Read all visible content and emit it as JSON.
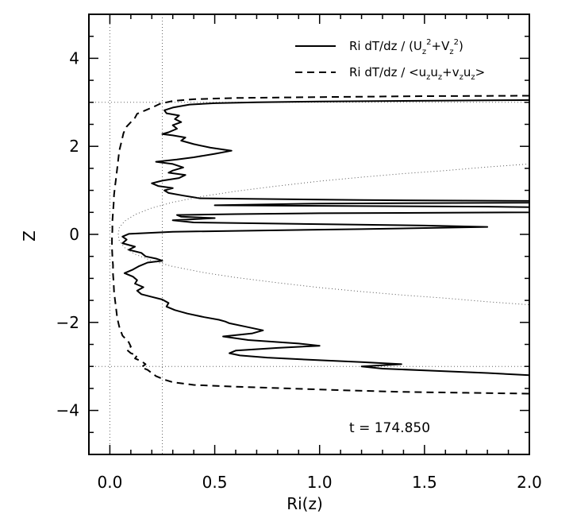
{
  "chart_data": {
    "type": "line",
    "title": "",
    "xlabel": "Ri(z)",
    "ylabel": "Z",
    "xlim": [
      -0.1,
      2.0
    ],
    "ylim": [
      -5.0,
      5.0
    ],
    "x_ticks": [
      0.0,
      0.5,
      1.0,
      1.5,
      2.0
    ],
    "x_tick_labels": [
      "0.0",
      "0.5",
      "1.0",
      "1.5",
      "2.0"
    ],
    "y_ticks": [
      -4,
      -2,
      0,
      2,
      4
    ],
    "y_tick_labels": [
      "−4",
      "−2",
      "0",
      "2",
      "4"
    ],
    "grid": false,
    "legend_placement": "top-right",
    "annotation": "t = 174.850",
    "legend": [
      {
        "style": "solid",
        "prefix": "Ri dT/dz / (U",
        "sub1": "z",
        "sup1": "2",
        "mid": "+V",
        "sub2": "z",
        "sup2": "2",
        "suffix": ")"
      },
      {
        "style": "dashed",
        "prefix": "Ri dT/dz / <u",
        "a": "z",
        "b": "u",
        "c": "z",
        "d": "+v",
        "e": "z",
        "f": "u",
        "g": "z",
        "suffix": ">"
      }
    ],
    "series": [
      {
        "style": "solid",
        "points": [
          [
            2.0,
            3.05
          ],
          [
            1.6,
            3.04
          ],
          [
            1.0,
            3.02
          ],
          [
            0.7,
            3.0
          ],
          [
            0.5,
            2.98
          ],
          [
            0.38,
            2.95
          ],
          [
            0.3,
            2.88
          ],
          [
            0.26,
            2.82
          ],
          [
            0.27,
            2.75
          ],
          [
            0.33,
            2.7
          ],
          [
            0.31,
            2.62
          ],
          [
            0.34,
            2.55
          ],
          [
            0.3,
            2.48
          ],
          [
            0.32,
            2.4
          ],
          [
            0.28,
            2.32
          ],
          [
            0.25,
            2.28
          ],
          [
            0.3,
            2.25
          ],
          [
            0.36,
            2.2
          ],
          [
            0.34,
            2.13
          ],
          [
            0.4,
            2.05
          ],
          [
            0.48,
            1.97
          ],
          [
            0.58,
            1.9
          ],
          [
            0.5,
            1.83
          ],
          [
            0.4,
            1.75
          ],
          [
            0.32,
            1.7
          ],
          [
            0.22,
            1.65
          ],
          [
            0.3,
            1.6
          ],
          [
            0.35,
            1.52
          ],
          [
            0.3,
            1.45
          ],
          [
            0.28,
            1.4
          ],
          [
            0.36,
            1.35
          ],
          [
            0.33,
            1.28
          ],
          [
            0.25,
            1.22
          ],
          [
            0.2,
            1.16
          ],
          [
            0.23,
            1.1
          ],
          [
            0.3,
            1.05
          ],
          [
            0.26,
            1.0
          ],
          [
            0.28,
            0.94
          ],
          [
            0.35,
            0.88
          ],
          [
            0.43,
            0.82
          ],
          [
            1.2,
            0.78
          ],
          [
            2.0,
            0.76
          ],
          [
            2.0,
            0.72
          ],
          [
            1.0,
            0.7
          ],
          [
            0.5,
            0.66
          ],
          [
            1.8,
            0.63
          ],
          [
            2.0,
            0.62
          ],
          [
            2.0,
            0.5
          ],
          [
            1.0,
            0.48
          ],
          [
            0.6,
            0.46
          ],
          [
            0.32,
            0.44
          ],
          [
            0.34,
            0.4
          ],
          [
            0.5,
            0.37
          ],
          [
            0.3,
            0.32
          ],
          [
            0.4,
            0.27
          ],
          [
            1.5,
            0.2
          ],
          [
            1.8,
            0.17
          ],
          [
            1.2,
            0.12
          ],
          [
            0.3,
            0.06
          ],
          [
            0.09,
            0.01
          ],
          [
            0.06,
            -0.05
          ],
          [
            0.08,
            -0.12
          ],
          [
            0.06,
            -0.2
          ],
          [
            0.12,
            -0.28
          ],
          [
            0.09,
            -0.35
          ],
          [
            0.15,
            -0.42
          ],
          [
            0.17,
            -0.5
          ],
          [
            0.22,
            -0.55
          ],
          [
            0.25,
            -0.6
          ],
          [
            0.18,
            -0.64
          ],
          [
            0.14,
            -0.72
          ],
          [
            0.11,
            -0.8
          ],
          [
            0.07,
            -0.88
          ],
          [
            0.11,
            -0.96
          ],
          [
            0.13,
            -1.04
          ],
          [
            0.12,
            -1.12
          ],
          [
            0.16,
            -1.2
          ],
          [
            0.13,
            -1.28
          ],
          [
            0.15,
            -1.36
          ],
          [
            0.2,
            -1.42
          ],
          [
            0.25,
            -1.48
          ],
          [
            0.28,
            -1.56
          ],
          [
            0.27,
            -1.64
          ],
          [
            0.31,
            -1.72
          ],
          [
            0.37,
            -1.8
          ],
          [
            0.45,
            -1.88
          ],
          [
            0.52,
            -1.94
          ],
          [
            0.55,
            -1.98
          ],
          [
            0.57,
            -2.02
          ],
          [
            0.65,
            -2.1
          ],
          [
            0.73,
            -2.18
          ],
          [
            0.68,
            -2.25
          ],
          [
            0.54,
            -2.32
          ],
          [
            0.66,
            -2.4
          ],
          [
            0.9,
            -2.48
          ],
          [
            1.0,
            -2.53
          ],
          [
            0.8,
            -2.58
          ],
          [
            0.6,
            -2.64
          ],
          [
            0.57,
            -2.7
          ],
          [
            0.62,
            -2.75
          ],
          [
            0.75,
            -2.8
          ],
          [
            1.0,
            -2.86
          ],
          [
            1.2,
            -2.9
          ],
          [
            1.39,
            -2.95
          ],
          [
            1.2,
            -3.0
          ],
          [
            1.3,
            -3.05
          ],
          [
            1.55,
            -3.1
          ],
          [
            1.8,
            -3.15
          ],
          [
            2.0,
            -3.2
          ]
        ]
      },
      {
        "style": "dashed",
        "points": [
          [
            2.0,
            3.15
          ],
          [
            1.5,
            3.14
          ],
          [
            1.0,
            3.12
          ],
          [
            0.6,
            3.1
          ],
          [
            0.4,
            3.07
          ],
          [
            0.3,
            3.03
          ],
          [
            0.24,
            2.97
          ],
          [
            0.21,
            2.9
          ],
          [
            0.17,
            2.82
          ],
          [
            0.13,
            2.74
          ],
          [
            0.12,
            2.65
          ],
          [
            0.1,
            2.55
          ],
          [
            0.08,
            2.45
          ],
          [
            0.065,
            2.3
          ],
          [
            0.055,
            2.1
          ],
          [
            0.045,
            1.9
          ],
          [
            0.04,
            1.7
          ],
          [
            0.035,
            1.5
          ],
          [
            0.03,
            1.3
          ],
          [
            0.025,
            1.1
          ],
          [
            0.02,
            0.9
          ],
          [
            0.018,
            0.7
          ],
          [
            0.015,
            0.5
          ],
          [
            0.012,
            0.3
          ],
          [
            0.012,
            0.1
          ],
          [
            0.01,
            -0.1
          ],
          [
            0.01,
            -0.3
          ],
          [
            0.012,
            -0.5
          ],
          [
            0.015,
            -0.7
          ],
          [
            0.015,
            -0.9
          ],
          [
            0.018,
            -1.1
          ],
          [
            0.02,
            -1.3
          ],
          [
            0.025,
            -1.5
          ],
          [
            0.03,
            -1.7
          ],
          [
            0.035,
            -1.9
          ],
          [
            0.045,
            -2.1
          ],
          [
            0.06,
            -2.3
          ],
          [
            0.09,
            -2.45
          ],
          [
            0.1,
            -2.55
          ],
          [
            0.08,
            -2.62
          ],
          [
            0.1,
            -2.7
          ],
          [
            0.13,
            -2.75
          ],
          [
            0.12,
            -2.82
          ],
          [
            0.15,
            -2.88
          ],
          [
            0.17,
            -2.95
          ],
          [
            0.15,
            -3.02
          ],
          [
            0.18,
            -3.08
          ],
          [
            0.2,
            -3.15
          ],
          [
            0.22,
            -3.22
          ],
          [
            0.26,
            -3.3
          ],
          [
            0.3,
            -3.36
          ],
          [
            0.4,
            -3.42
          ],
          [
            0.6,
            -3.46
          ],
          [
            0.85,
            -3.5
          ],
          [
            1.1,
            -3.54
          ],
          [
            1.4,
            -3.58
          ],
          [
            1.7,
            -3.6
          ],
          [
            2.0,
            -3.62
          ]
        ]
      },
      {
        "style": "dotted",
        "points": [
          [
            2.0,
            1.6
          ],
          [
            1.8,
            1.53
          ],
          [
            1.6,
            1.45
          ],
          [
            1.4,
            1.38
          ],
          [
            1.2,
            1.3
          ],
          [
            1.0,
            1.21
          ],
          [
            0.8,
            1.1
          ],
          [
            0.6,
            0.98
          ],
          [
            0.45,
            0.87
          ],
          [
            0.3,
            0.73
          ],
          [
            0.2,
            0.6
          ],
          [
            0.12,
            0.45
          ],
          [
            0.07,
            0.3
          ],
          [
            0.045,
            0.15
          ],
          [
            0.04,
            0.0
          ],
          [
            0.045,
            -0.15
          ],
          [
            0.07,
            -0.3
          ],
          [
            0.12,
            -0.45
          ],
          [
            0.2,
            -0.6
          ],
          [
            0.3,
            -0.73
          ],
          [
            0.45,
            -0.87
          ],
          [
            0.6,
            -0.98
          ],
          [
            0.8,
            -1.1
          ],
          [
            1.0,
            -1.21
          ],
          [
            1.2,
            -1.3
          ],
          [
            1.4,
            -1.38
          ],
          [
            1.6,
            -1.45
          ],
          [
            1.8,
            -1.53
          ],
          [
            2.0,
            -1.6
          ]
        ]
      }
    ],
    "reference_lines": [
      {
        "orientation": "vertical",
        "value": 0.0,
        "style": "dotted"
      },
      {
        "orientation": "vertical",
        "value": 0.25,
        "style": "dotted"
      },
      {
        "orientation": "horizontal",
        "value": 3.0,
        "style": "dotted"
      },
      {
        "orientation": "horizontal",
        "value": -3.0,
        "style": "dotted"
      }
    ]
  }
}
